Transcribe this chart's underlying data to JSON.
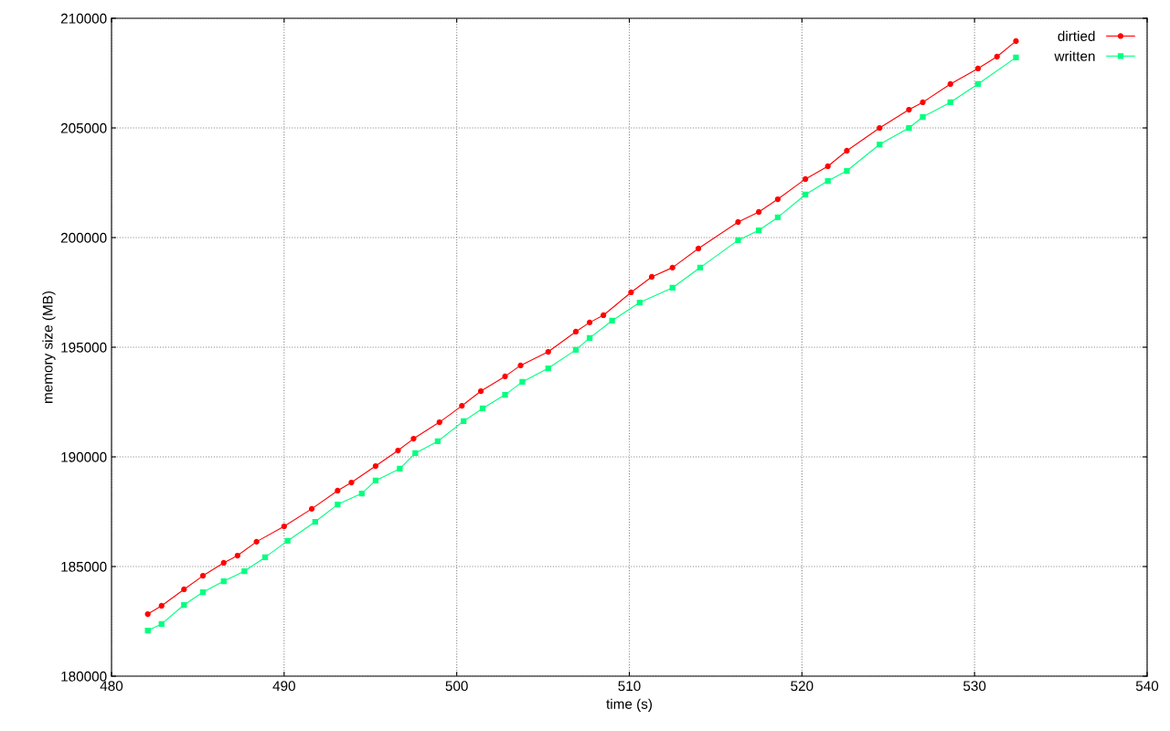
{
  "chart_data": {
    "type": "line",
    "xlabel": "time (s)",
    "ylabel": "memory size (MB)",
    "xlim": [
      480,
      540
    ],
    "xticks": [
      480,
      490,
      500,
      510,
      520,
      530,
      540
    ],
    "ylim": [
      180000,
      210000
    ],
    "yticks": [
      180000,
      185000,
      190000,
      195000,
      200000,
      205000,
      210000
    ],
    "grid": true,
    "legend": "top right",
    "line_style": "solid",
    "series": [
      {
        "name": "dirtied",
        "color": "#ff0000",
        "marker": "circle",
        "x": [
          482.1,
          482.9,
          484.2,
          485.3,
          486.5,
          487.3,
          488.4,
          490.0,
          491.6,
          493.1,
          493.9,
          495.3,
          496.6,
          497.5,
          499.0,
          500.3,
          501.4,
          502.8,
          503.7,
          505.3,
          506.9,
          507.7,
          508.5,
          510.1,
          511.3,
          512.5,
          514.0,
          516.3,
          517.5,
          518.6,
          520.2,
          521.5,
          522.6,
          524.5,
          526.2,
          527.0,
          528.6,
          530.2,
          531.3,
          532.4
        ],
        "values": [
          182830,
          183210,
          183960,
          184580,
          185170,
          185500,
          186130,
          186830,
          187630,
          188460,
          188830,
          189580,
          190290,
          190830,
          191580,
          192330,
          193000,
          193670,
          194170,
          194790,
          195710,
          196130,
          196460,
          197500,
          198210,
          198630,
          199500,
          200710,
          201170,
          201750,
          202670,
          203250,
          203960,
          205000,
          205830,
          206170,
          207000,
          207710,
          208250,
          208960
        ]
      },
      {
        "name": "written",
        "color": "#00ff7f",
        "marker": "square",
        "x": [
          482.1,
          482.9,
          484.2,
          485.3,
          486.5,
          487.7,
          488.9,
          490.2,
          491.8,
          493.1,
          494.5,
          495.3,
          496.7,
          497.6,
          498.9,
          500.4,
          501.5,
          502.8,
          503.8,
          505.3,
          506.9,
          507.7,
          509.0,
          510.6,
          512.5,
          514.1,
          516.3,
          517.5,
          518.6,
          520.2,
          521.5,
          522.6,
          524.5,
          526.2,
          527.0,
          528.6,
          530.2,
          532.4
        ],
        "values": [
          182080,
          182380,
          183250,
          183830,
          184330,
          184790,
          185420,
          186170,
          187040,
          187830,
          188330,
          188920,
          189460,
          190170,
          190710,
          191630,
          192210,
          192830,
          193420,
          194040,
          194880,
          195420,
          196210,
          197040,
          197710,
          198630,
          199880,
          200330,
          200920,
          201960,
          202580,
          203040,
          204250,
          205000,
          205500,
          206170,
          207000,
          208210
        ]
      }
    ]
  }
}
